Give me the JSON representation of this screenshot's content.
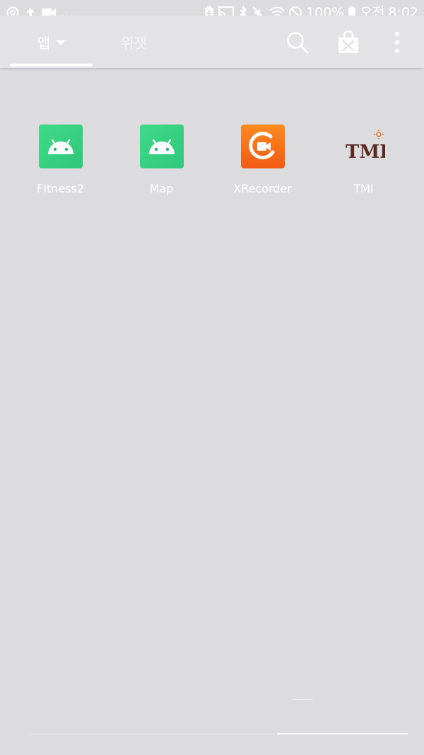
{
  "status_bar": {
    "left_icons": [
      "sync-circle-icon",
      "upload-icon",
      "video-camera-icon"
    ],
    "left_more": "...",
    "right_icons": [
      "battery-saver-icon",
      "cast-icon",
      "bluetooth-icon",
      "mute-icon",
      "wifi-icon",
      "do-not-disturb-icon"
    ],
    "battery_percent": "100%",
    "time_prefix": "오전",
    "time": "8:02"
  },
  "tabs": [
    {
      "label": "앱",
      "selected": true,
      "has_dropdown": true
    },
    {
      "label": "위젯",
      "selected": false,
      "has_dropdown": false
    }
  ],
  "toolbar": {
    "icons": [
      "search-icon",
      "play-store-icon",
      "more-options-icon"
    ]
  },
  "apps": [
    {
      "label": "FItness2",
      "icon": "android-icon"
    },
    {
      "label": "Map",
      "icon": "android-icon"
    },
    {
      "label": "XRecorder",
      "icon": "xrecorder-icon"
    },
    {
      "label": "TMI",
      "icon": "tmi-icon",
      "icon_text": "TMI"
    }
  ],
  "colors": {
    "background": "#dcdbde",
    "android_green": "#3ddc84",
    "xrecorder_orange": "#f26a17",
    "text": "#ffffff"
  }
}
